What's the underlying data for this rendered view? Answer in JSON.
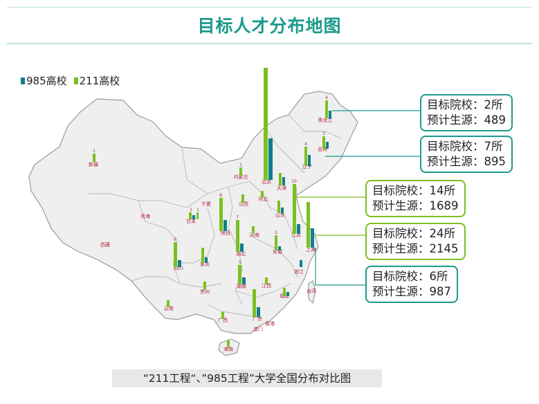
{
  "title": "目标人才分布地图",
  "legend": [
    {
      "label": "985高校",
      "color": "#0f7f8c"
    },
    {
      "label": "211高校",
      "color": "#7cbf22"
    }
  ],
  "colors": {
    "teal": "#0f7f8c",
    "green": "#7cbf22",
    "title": "#1a9a8c",
    "map_fill": "#efefef",
    "map_stroke": "#9a9a9a",
    "region_label": "#b2263c"
  },
  "regions": [
    "新疆",
    "西藏",
    "青海",
    "甘肃",
    "宁夏",
    "内蒙古",
    "黑龙江",
    "吉林",
    "辽宁",
    "北京",
    "天津",
    "河北",
    "山西",
    "山东",
    "陕西",
    "河南",
    "江苏",
    "上海",
    "四川",
    "重庆",
    "湖北",
    "安徽",
    "浙江",
    "贵州",
    "湖南",
    "江西",
    "福建",
    "云南",
    "广西",
    "广东",
    "香港",
    "澳门",
    "海南",
    "台湾"
  ],
  "bar_numbers": [
    "1",
    "1",
    "1",
    "1",
    "2",
    "3",
    "4",
    "4",
    "5",
    "6",
    "7",
    "8",
    "10"
  ],
  "callouts": [
    {
      "school_label": "目标院校：",
      "school_value": "2所",
      "source_label": "预计生源：",
      "source_value": "489",
      "color": "#1a9a8c"
    },
    {
      "school_label": "目标院校：",
      "school_value": "7所",
      "source_label": "预计生源：",
      "source_value": "895",
      "color": "#1a9a8c"
    },
    {
      "school_label": "目标院校：",
      "school_value": "14所",
      "source_label": "预计生源：",
      "source_value": "1689",
      "color": "#7cbf22"
    },
    {
      "school_label": "目标院校：",
      "school_value": "24所",
      "source_label": "预计生源：",
      "source_value": "2145",
      "color": "#7cbf22"
    },
    {
      "school_label": "目标院校：",
      "school_value": "6所",
      "source_label": "预计生源：",
      "source_value": "987",
      "color": "#1a9a8c"
    }
  ],
  "caption": "“211工程“、”985工程”大学全国分布对比图"
}
